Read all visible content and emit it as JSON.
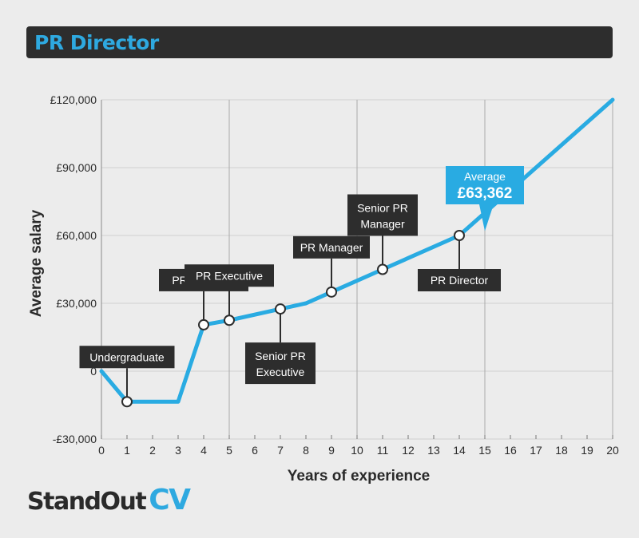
{
  "header": {
    "title": "PR Director"
  },
  "logo": {
    "main": "StandOut",
    "accent": "CV"
  },
  "colors": {
    "line": "#29abe2",
    "label_bg": "#2d2d2d",
    "label_text": "#ffffff",
    "background": "#ececec",
    "grid": "#cfcfcf"
  },
  "chart_data": {
    "type": "line",
    "title": "",
    "xlabel": "Years of experience",
    "ylabel": "Average salary",
    "xlim": [
      0,
      20
    ],
    "ylim": [
      -30000,
      120000
    ],
    "x_ticks": [
      0,
      1,
      2,
      3,
      4,
      5,
      6,
      7,
      8,
      9,
      10,
      11,
      12,
      13,
      14,
      15,
      16,
      17,
      18,
      19,
      20
    ],
    "y_ticks": [
      {
        "value": -30000,
        "label": "-£30,000"
      },
      {
        "value": 0,
        "label": "0"
      },
      {
        "value": 30000,
        "label": "£30,000"
      },
      {
        "value": 60000,
        "label": "£60,000"
      },
      {
        "value": 90000,
        "label": "£90,000"
      },
      {
        "value": 120000,
        "label": "£120,000"
      }
    ],
    "grid": "vertical lines at 5, 10, 15 and horizontal lines at each y tick",
    "series": [
      {
        "x": [
          0,
          1,
          3,
          4,
          5,
          7,
          8,
          9,
          11,
          14,
          20
        ],
        "y": [
          0,
          -13500,
          -13500,
          20500,
          22500,
          27500,
          30000,
          35000,
          45000,
          60000,
          120000
        ]
      }
    ],
    "milestones": [
      {
        "x": 1,
        "y": -13500,
        "lines": [
          "Undergraduate"
        ],
        "pos": "above"
      },
      {
        "x": 4,
        "y": 20500,
        "lines": [
          "PR Assistant"
        ],
        "pos": "above"
      },
      {
        "x": 5,
        "y": 22500,
        "lines": [
          "PR Executive"
        ],
        "pos": "above"
      },
      {
        "x": 7,
        "y": 27500,
        "lines": [
          "Senior PR",
          "Executive"
        ],
        "pos": "below"
      },
      {
        "x": 9,
        "y": 35000,
        "lines": [
          "PR Manager"
        ],
        "pos": "above"
      },
      {
        "x": 11,
        "y": 45000,
        "lines": [
          "Senior PR",
          "Manager"
        ],
        "pos": "above"
      },
      {
        "x": 14,
        "y": 60000,
        "lines": [
          "PR Director"
        ],
        "pos": "below"
      }
    ],
    "callout": {
      "x": 15,
      "y": 63362,
      "lines": [
        "Average",
        "£63,362"
      ]
    }
  }
}
